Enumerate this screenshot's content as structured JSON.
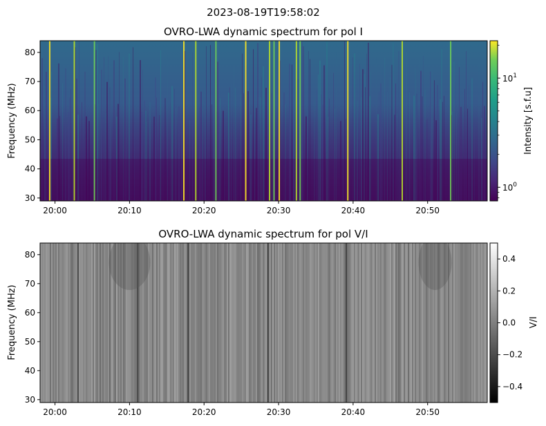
{
  "figure": {
    "suptitle": "2023-08-19T19:58:02"
  },
  "chart_data": [
    {
      "type": "heatmap",
      "title": "OVRO-LWA dynamic spectrum for pol I",
      "ylabel": "Frequency (MHz)",
      "xlabel": "",
      "x_range": [
        "19:58",
        "20:58"
      ],
      "x_ticks": [
        "20:00",
        "20:10",
        "20:20",
        "20:30",
        "20:40",
        "20:50"
      ],
      "ylim": [
        29,
        84
      ],
      "y_ticks": [
        30,
        40,
        50,
        60,
        70,
        80
      ],
      "colorbar": {
        "label": "Intensity [s.f.u]",
        "scale": "log",
        "range": [
          0.75,
          22
        ],
        "major_ticks": [
          {
            "value": 1,
            "base": "10",
            "exp": "0"
          },
          {
            "value": 10,
            "base": "10",
            "exp": "1"
          }
        ],
        "colormap": "viridis"
      },
      "bursts_minute_offset": [
        1.2,
        4.5,
        7.2,
        19.2,
        20.8,
        23.5,
        27.5,
        30.7,
        31.3,
        32.0,
        34.3,
        34.8,
        41.2,
        48.5,
        55.0
      ]
    },
    {
      "type": "heatmap",
      "title": "OVRO-LWA dynamic spectrum for pol V/I",
      "ylabel": "Frequency (MHz)",
      "xlabel": "",
      "x_range": [
        "19:58",
        "20:58"
      ],
      "x_ticks": [
        "20:00",
        "20:10",
        "20:20",
        "20:30",
        "20:40",
        "20:50"
      ],
      "ylim": [
        29,
        84
      ],
      "y_ticks": [
        30,
        40,
        50,
        60,
        70,
        80
      ],
      "colorbar": {
        "label": "V/I",
        "scale": "linear",
        "range": [
          -0.5,
          0.5
        ],
        "tick_values": [
          -0.4,
          -0.2,
          0.0,
          0.2,
          0.4
        ],
        "tick_labels": [
          "−0.4",
          "−0.2",
          "0.0",
          "0.2",
          "0.4"
        ],
        "colormap": "gray"
      }
    }
  ]
}
